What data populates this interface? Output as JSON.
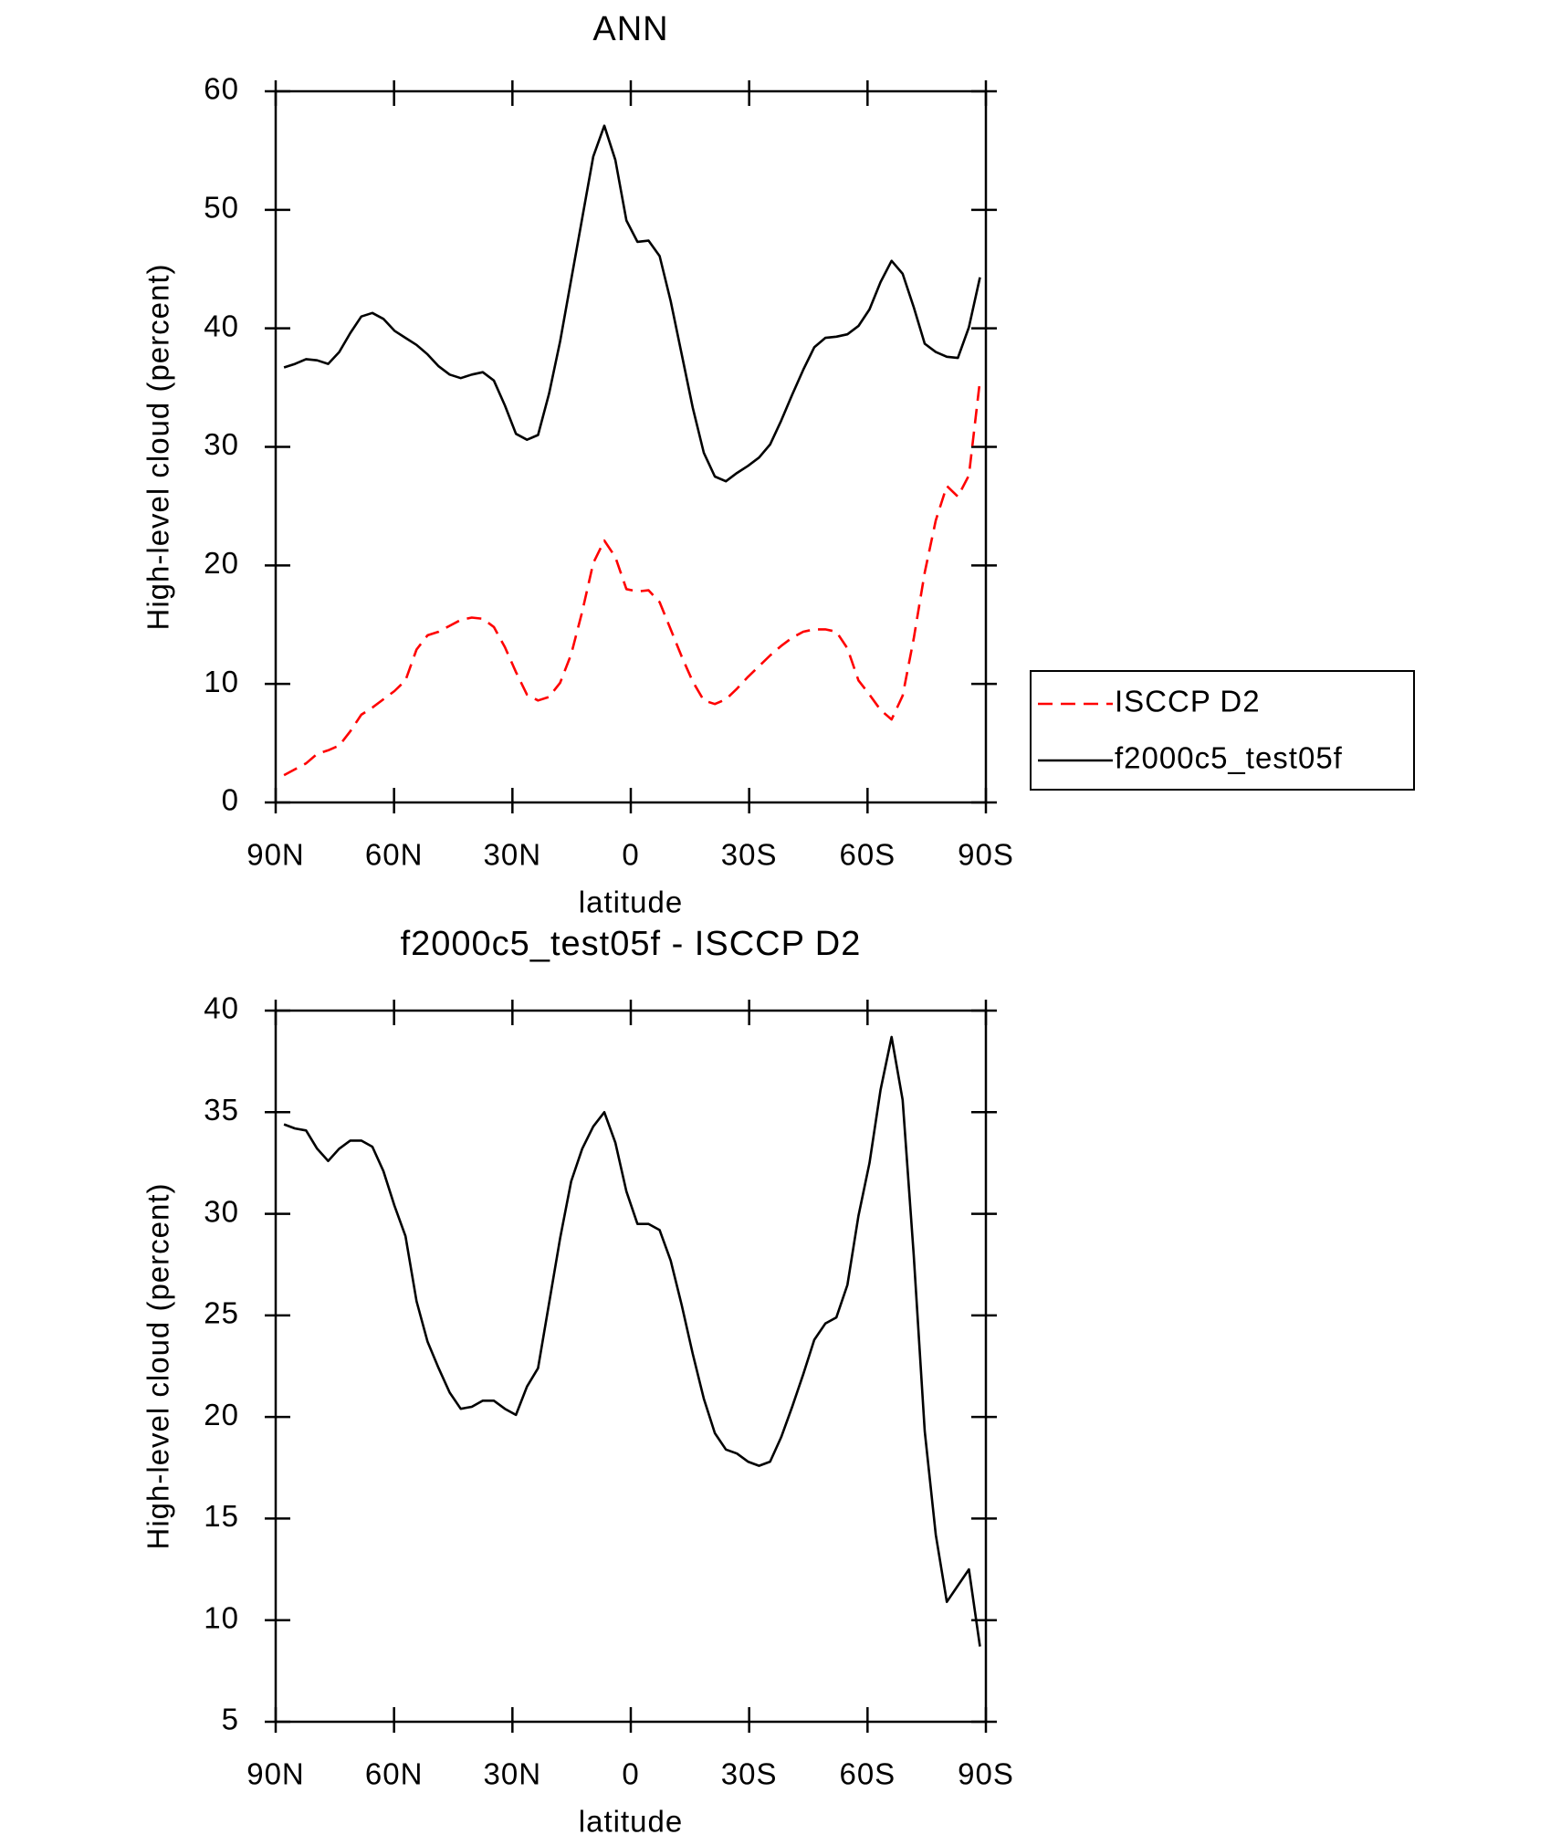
{
  "chart_data": [
    {
      "type": "line",
      "title": "ANN",
      "xlabel": "latitude",
      "ylabel": "High-level cloud (percent)",
      "x": [
        87.9,
        85.1,
        82.3,
        79.5,
        76.7,
        73.9,
        71.1,
        68.3,
        65.5,
        62.7,
        59.9,
        57.1,
        54.3,
        51.5,
        48.7,
        45.9,
        43.1,
        40.3,
        37.5,
        34.7,
        31.9,
        29.1,
        26.3,
        23.5,
        20.7,
        17.9,
        15.1,
        12.3,
        9.5,
        6.7,
        3.9,
        1.1,
        -1.7,
        -4.5,
        -7.3,
        -10.1,
        -12.9,
        -15.7,
        -18.5,
        -21.3,
        -24.1,
        -26.9,
        -29.7,
        -32.5,
        -35.3,
        -38.1,
        -40.9,
        -43.7,
        -46.5,
        -49.3,
        -52.1,
        -54.9,
        -57.7,
        -60.5,
        -63.3,
        -66.1,
        -68.9,
        -71.7,
        -74.5,
        -77.3,
        -80.1,
        -82.9,
        -85.7,
        -88.5
      ],
      "series": [
        {
          "name": "ISCCP D2",
          "color": "#ff0000",
          "style": "dashed",
          "values": [
            2.3,
            2.8,
            3.3,
            4.1,
            4.4,
            4.8,
            6.0,
            7.4,
            8.0,
            8.7,
            9.4,
            10.3,
            12.9,
            14.1,
            14.4,
            14.9,
            15.4,
            15.6,
            15.5,
            14.8,
            13.1,
            11.0,
            9.1,
            8.6,
            8.9,
            10.1,
            12.5,
            16.1,
            20.2,
            22.1,
            20.7,
            18.0,
            17.8,
            17.9,
            16.9,
            14.6,
            12.3,
            10.2,
            8.6,
            8.3,
            8.7,
            9.6,
            10.6,
            11.5,
            12.4,
            13.2,
            13.9,
            14.4,
            14.6,
            14.6,
            14.4,
            13.0,
            10.3,
            9.1,
            7.8,
            7.0,
            9.0,
            13.8,
            19.4,
            23.8,
            26.7,
            25.8,
            27.6,
            35.6
          ]
        },
        {
          "name": "f2000c5_test05f",
          "color": "#000000",
          "style": "solid",
          "values": [
            36.7,
            37.0,
            37.4,
            37.3,
            37.0,
            38.0,
            39.6,
            41.0,
            41.3,
            40.8,
            39.8,
            39.2,
            38.6,
            37.8,
            36.8,
            36.1,
            35.8,
            36.1,
            36.3,
            35.6,
            33.5,
            31.1,
            30.6,
            31.0,
            34.5,
            38.9,
            44.1,
            49.3,
            54.5,
            57.1,
            54.2,
            49.1,
            47.3,
            47.4,
            46.1,
            42.3,
            37.8,
            33.3,
            29.5,
            27.5,
            27.1,
            27.8,
            28.4,
            29.1,
            30.2,
            32.2,
            34.4,
            36.5,
            38.4,
            39.2,
            39.3,
            39.5,
            40.2,
            41.6,
            43.9,
            45.7,
            44.6,
            41.8,
            38.7,
            38.0,
            37.6,
            37.5,
            40.1,
            44.3
          ]
        }
      ],
      "xlim": [
        90,
        -90
      ],
      "xticks": [
        {
          "value": 90,
          "label": "90N"
        },
        {
          "value": 60,
          "label": "60N"
        },
        {
          "value": 30,
          "label": "30N"
        },
        0,
        {
          "value": -30,
          "label": "30S"
        },
        {
          "value": -60,
          "label": "60S"
        },
        {
          "value": -90,
          "label": "90S"
        }
      ],
      "ylim": [
        0,
        60
      ],
      "yticks": [
        0,
        10,
        20,
        30,
        40,
        50,
        60
      ],
      "legend": "right"
    },
    {
      "type": "line",
      "title": "f2000c5_test05f - ISCCP D2",
      "xlabel": "latitude",
      "ylabel": "High-level cloud (percent)",
      "x": [
        87.9,
        85.1,
        82.3,
        79.5,
        76.7,
        73.9,
        71.1,
        68.3,
        65.5,
        62.7,
        59.9,
        57.1,
        54.3,
        51.5,
        48.7,
        45.9,
        43.1,
        40.3,
        37.5,
        34.7,
        31.9,
        29.1,
        26.3,
        23.5,
        20.7,
        17.9,
        15.1,
        12.3,
        9.5,
        6.7,
        3.9,
        1.1,
        -1.7,
        -4.5,
        -7.3,
        -10.1,
        -12.9,
        -15.7,
        -18.5,
        -21.3,
        -24.1,
        -26.9,
        -29.7,
        -32.5,
        -35.3,
        -38.1,
        -40.9,
        -43.7,
        -46.5,
        -49.3,
        -52.1,
        -54.9,
        -57.7,
        -60.5,
        -63.3,
        -66.1,
        -68.9,
        -71.7,
        -74.5,
        -77.3,
        -80.1,
        -82.9,
        -85.7,
        -88.5
      ],
      "series": [
        {
          "color": "#000000",
          "style": "solid",
          "values": [
            34.4,
            34.2,
            34.1,
            33.2,
            32.6,
            33.2,
            33.6,
            33.6,
            33.3,
            32.1,
            30.4,
            28.9,
            25.7,
            23.7,
            22.4,
            21.2,
            20.4,
            20.5,
            20.8,
            20.8,
            20.4,
            20.1,
            21.5,
            22.4,
            25.6,
            28.8,
            31.6,
            33.2,
            34.3,
            35.0,
            33.5,
            31.1,
            29.5,
            29.5,
            29.2,
            27.7,
            25.5,
            23.1,
            20.9,
            19.2,
            18.4,
            18.2,
            17.8,
            17.6,
            17.8,
            19.0,
            20.5,
            22.1,
            23.8,
            24.6,
            24.9,
            26.5,
            29.9,
            32.5,
            36.1,
            38.7,
            35.6,
            28.0,
            19.3,
            14.2,
            10.9,
            11.7,
            12.5,
            8.7
          ]
        }
      ],
      "xlim": [
        90,
        -90
      ],
      "xticks": [
        {
          "value": 90,
          "label": "90N"
        },
        {
          "value": 60,
          "label": "60N"
        },
        {
          "value": 30,
          "label": "30N"
        },
        0,
        {
          "value": -30,
          "label": "30S"
        },
        {
          "value": -60,
          "label": "60S"
        },
        {
          "value": -90,
          "label": "90S"
        }
      ],
      "ylim": [
        5,
        40
      ],
      "yticks": [
        5,
        10,
        15,
        20,
        25,
        30,
        35,
        40
      ]
    }
  ]
}
